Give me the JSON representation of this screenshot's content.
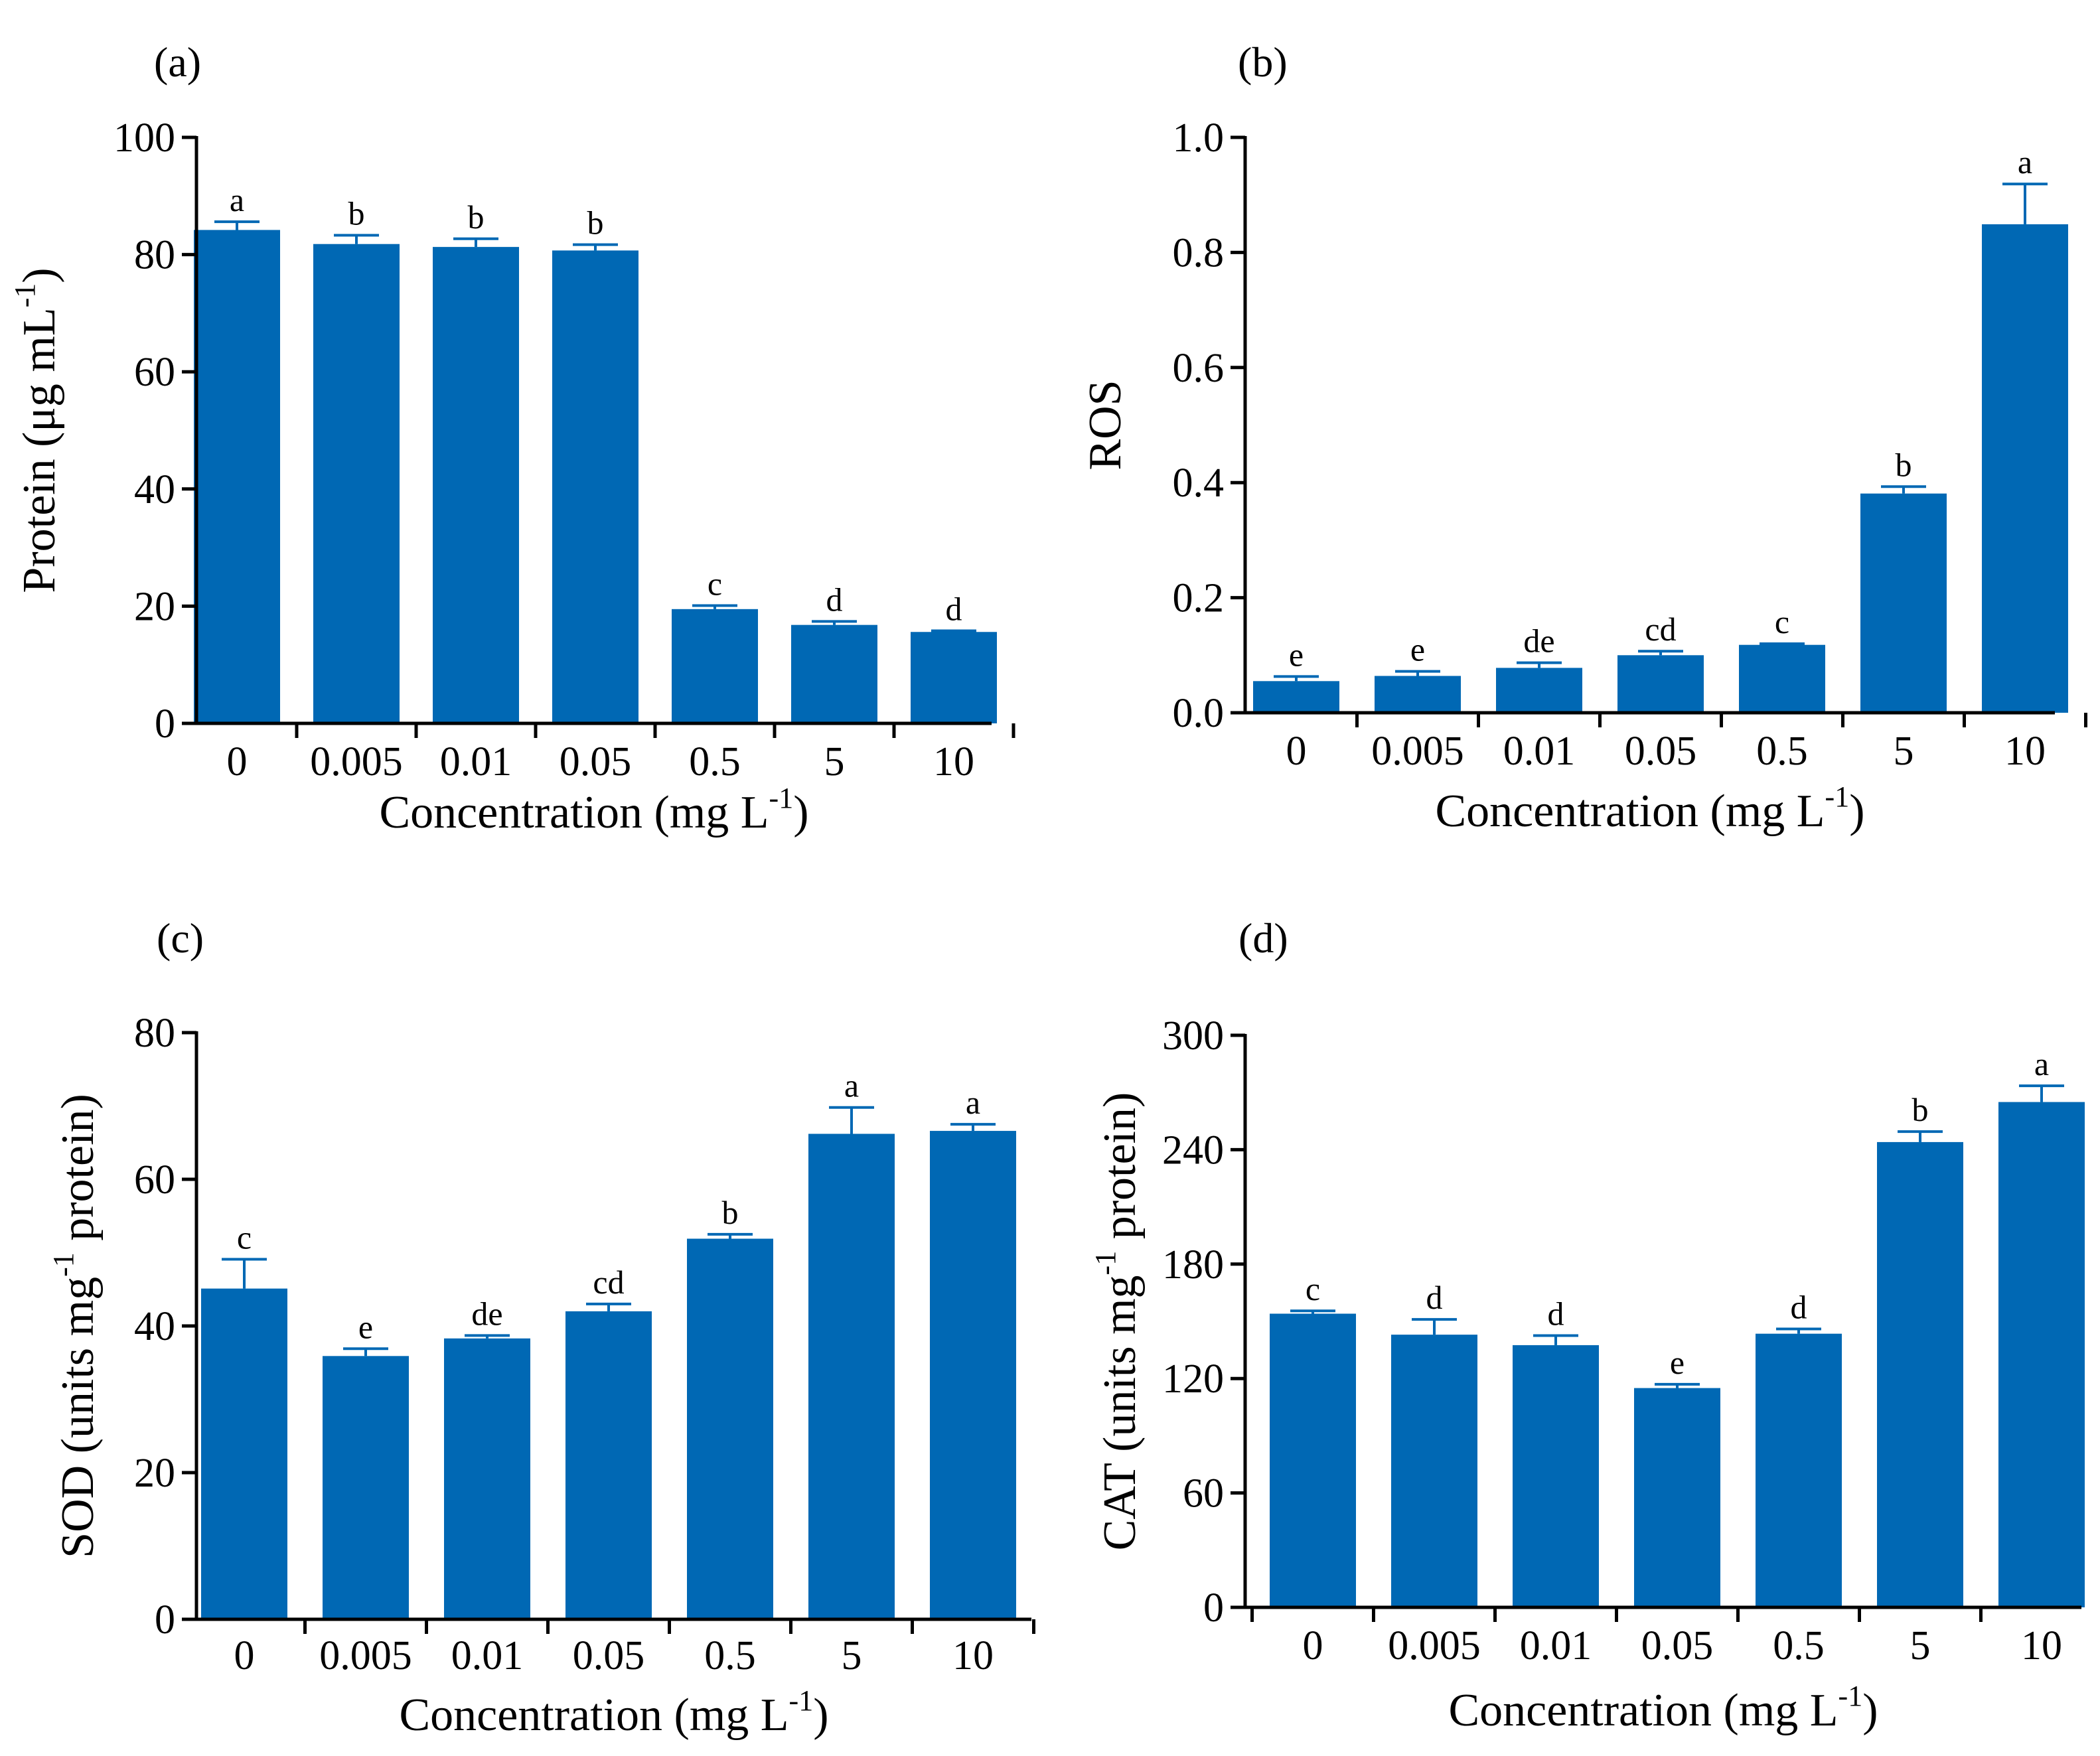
{
  "figure": {
    "bar_color": "#0068B4",
    "axis_color": "#000000"
  },
  "chart_data": [
    {
      "type": "bar",
      "panel": "(a)",
      "categories": [
        "0",
        "0.005",
        "0.01",
        "0.05",
        "0.5",
        "5",
        "10"
      ],
      "values": [
        84.2,
        81.8,
        81.3,
        80.7,
        19.5,
        16.8,
        15.6
      ],
      "errors": [
        1.4,
        1.5,
        1.4,
        1.0,
        0.6,
        0.6,
        0.2
      ],
      "significance": [
        "a",
        "b",
        "b",
        "b",
        "c",
        "d",
        "d"
      ],
      "yticks": [
        "0",
        "20",
        "40",
        "60",
        "80",
        "100"
      ],
      "ylim": [
        0,
        100
      ],
      "ylabel": {
        "main": "Protein (μg mL",
        "sup": "-1",
        "end": ")"
      },
      "xlabel": {
        "main": "Concentration (mg L",
        "sup": "-1",
        "end": ")"
      }
    },
    {
      "type": "bar",
      "panel": "(b)",
      "categories": [
        "0",
        "0.005",
        "0.01",
        "0.05",
        "0.5",
        "5",
        "10"
      ],
      "values": [
        0.055,
        0.064,
        0.078,
        0.1,
        0.118,
        0.381,
        0.849
      ],
      "errors": [
        0.008,
        0.008,
        0.009,
        0.007,
        0.002,
        0.012,
        0.07
      ],
      "significance": [
        "e",
        "e",
        "de",
        "cd",
        "c",
        "b",
        "a"
      ],
      "yticks": [
        "0.0",
        "0.2",
        "0.4",
        "0.6",
        "0.8",
        "1.0"
      ],
      "ylim": [
        0,
        1.0
      ],
      "ylabel": {
        "main": "ROS",
        "sup": "",
        "end": ""
      },
      "xlabel": {
        "main": "Concentration (mg L",
        "sup": "-1",
        "end": ")"
      }
    },
    {
      "type": "bar",
      "panel": "(c)",
      "categories": [
        "0",
        "0.005",
        "0.01",
        "0.05",
        "0.5",
        "5",
        "10"
      ],
      "values": [
        45.1,
        35.9,
        38.3,
        42.0,
        51.9,
        66.2,
        66.6
      ],
      "errors": [
        4.0,
        1.0,
        0.4,
        1.0,
        0.6,
        3.6,
        0.9
      ],
      "significance": [
        "c",
        "e",
        "de",
        "cd",
        "b",
        "a",
        "a"
      ],
      "yticks": [
        "0",
        "20",
        "40",
        "60",
        "80"
      ],
      "ylim": [
        0,
        80
      ],
      "ylabel": {
        "main": "SOD (units mg",
        "sup": "-1",
        "end": " protein)"
      },
      "xlabel": {
        "main": "Concentration (mg L",
        "sup": "-1",
        "end": ")"
      }
    },
    {
      "type": "bar",
      "panel": "(d)",
      "categories": [
        "0",
        "0.005",
        "0.01",
        "0.05",
        "0.5",
        "5",
        "10"
      ],
      "values": [
        154.0,
        143.0,
        137.5,
        115.0,
        143.5,
        244.0,
        265.0
      ],
      "errors": [
        1.5,
        8.0,
        5.0,
        2.0,
        2.5,
        5.5,
        8.5
      ],
      "significance": [
        "c",
        "d",
        "d",
        "e",
        "d",
        "b",
        "a"
      ],
      "yticks": [
        "0",
        "60",
        "120",
        "180",
        "240",
        "300"
      ],
      "ylim": [
        0,
        300
      ],
      "ylabel": {
        "main": "CAT (units mg",
        "sup": "-1",
        "end": " protein)"
      },
      "xlabel": {
        "main": "Concentration (mg L",
        "sup": "-1",
        "end": ")"
      }
    }
  ]
}
